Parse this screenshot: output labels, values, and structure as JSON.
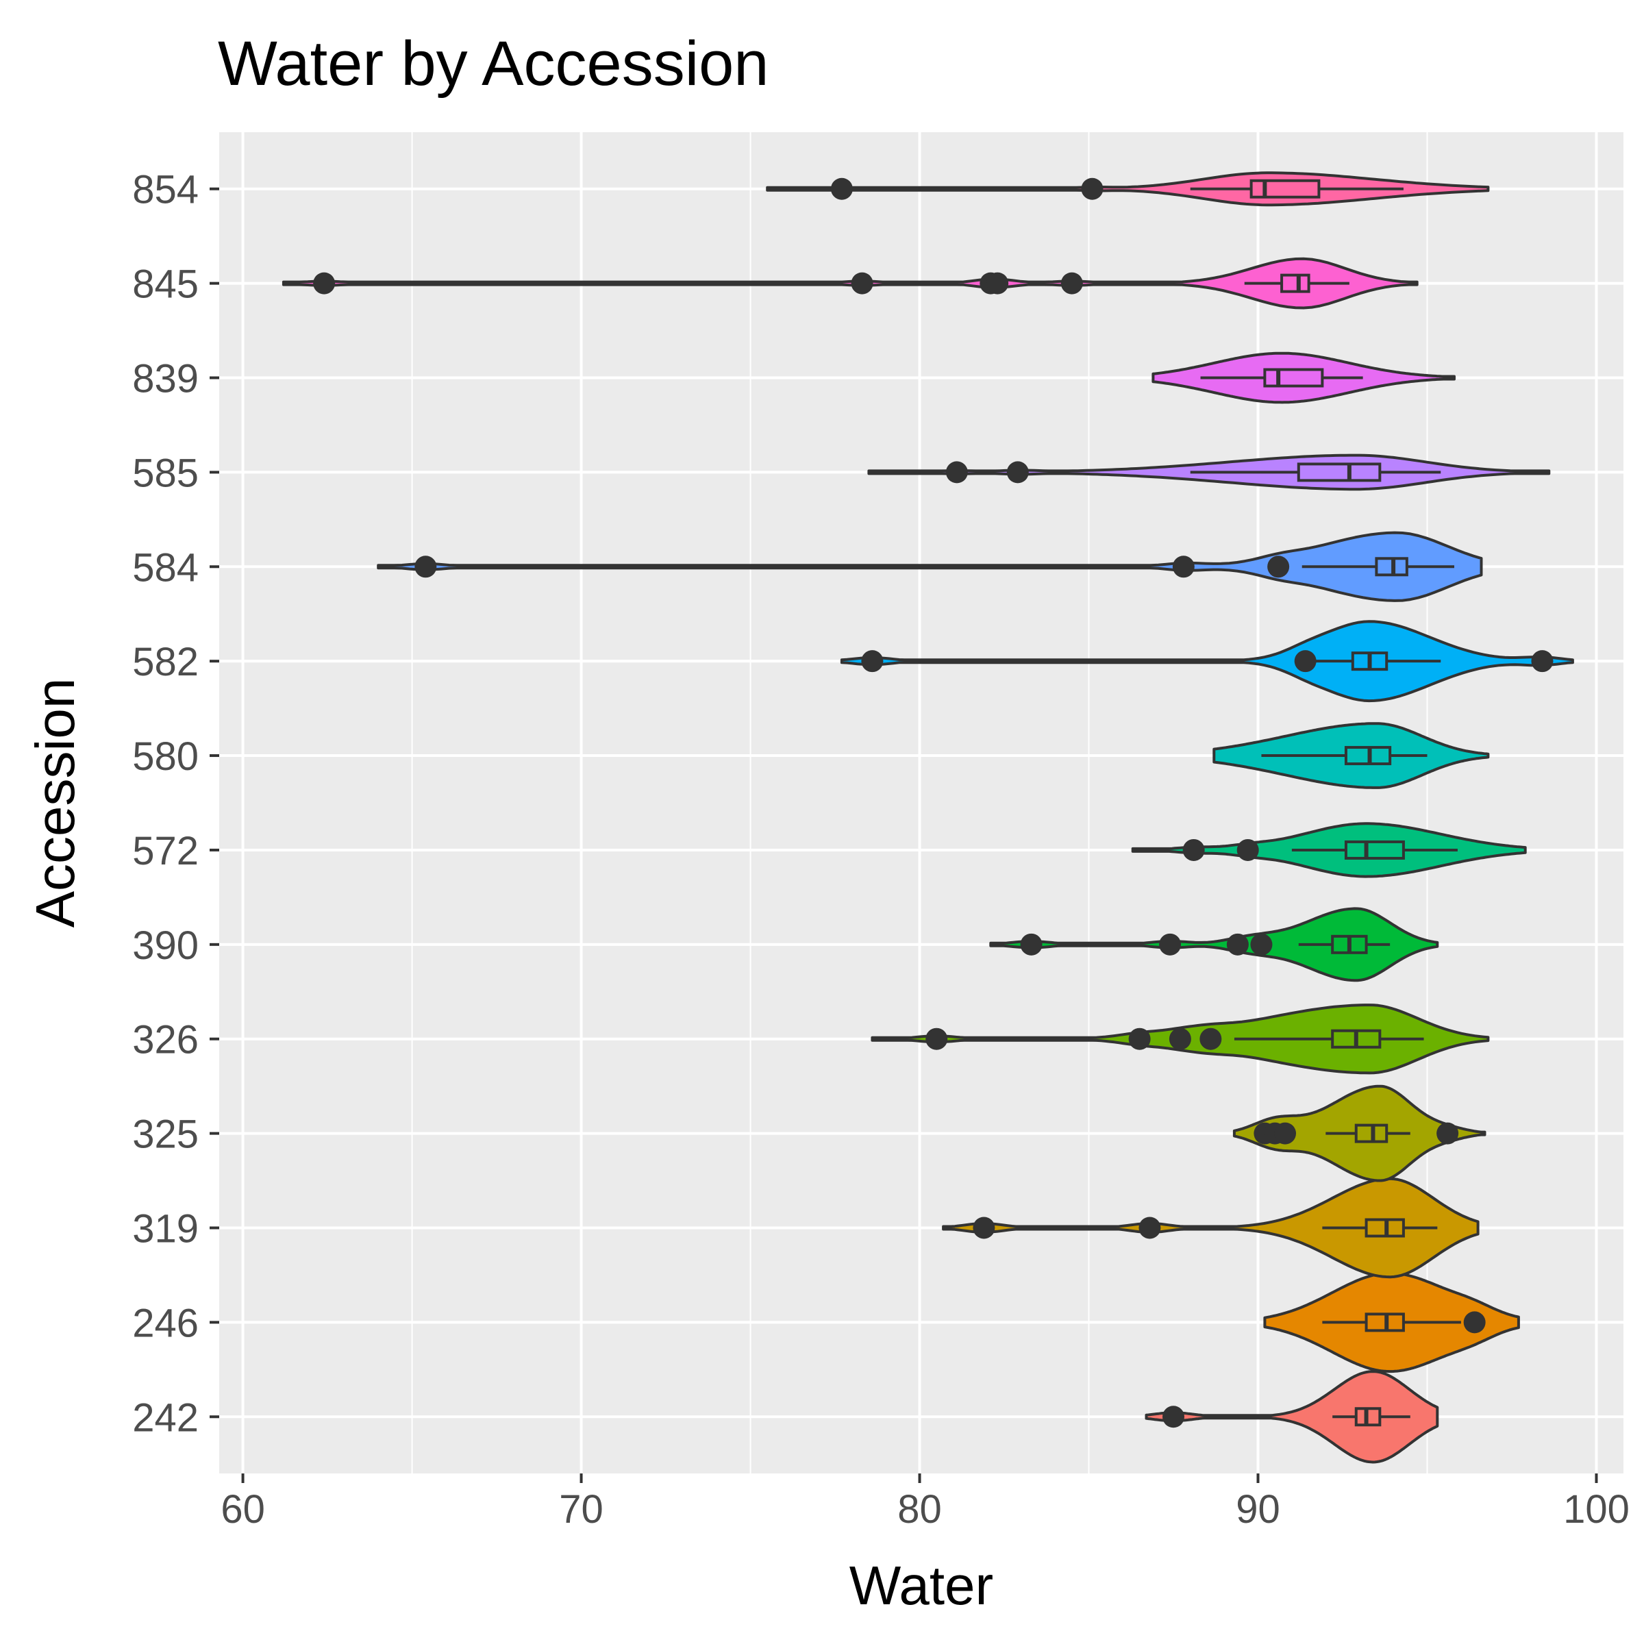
{
  "chart_data": {
    "type": "violin",
    "title": "Water by Accession",
    "xlabel": "Water",
    "ylabel": "Accession",
    "xlim": [
      59.3,
      100.8
    ],
    "x_ticks": [
      60,
      70,
      80,
      90,
      100
    ],
    "grid": true,
    "legend": "none",
    "categories": [
      "242",
      "246",
      "319",
      "325",
      "326",
      "390",
      "572",
      "580",
      "582",
      "584",
      "585",
      "839",
      "845",
      "854"
    ],
    "series": [
      {
        "category": "242",
        "color": "#F8766D",
        "min": 86.7,
        "max": 95.3,
        "mode": 93.4,
        "width": 0.48,
        "q1": 92.9,
        "median": 93.2,
        "q3": 93.6,
        "whisker_low": 92.2,
        "whisker_high": 94.5,
        "outliers": [
          87.5
        ]
      },
      {
        "category": "246",
        "color": "#E58700",
        "min": 90.2,
        "max": 97.7,
        "mode": 93.9,
        "width": 0.52,
        "q1": 93.2,
        "median": 93.8,
        "q3": 94.3,
        "whisker_low": 91.9,
        "whisker_high": 96.0,
        "outliers": [
          96.4
        ]
      },
      {
        "category": "319",
        "color": "#C99800",
        "min": 80.7,
        "max": 96.5,
        "mode": 93.9,
        "width": 0.52,
        "q1": 93.2,
        "median": 93.8,
        "q3": 94.3,
        "whisker_low": 91.9,
        "whisker_high": 95.3,
        "outliers": [
          81.9,
          86.8
        ]
      },
      {
        "category": "325",
        "color": "#A3A500",
        "min": 89.3,
        "max": 96.7,
        "mode": 93.6,
        "width": 0.5,
        "q1": 92.9,
        "median": 93.4,
        "q3": 93.8,
        "whisker_low": 92.0,
        "whisker_high": 94.5,
        "outliers": [
          90.2,
          90.5,
          90.8,
          95.6
        ]
      },
      {
        "category": "326",
        "color": "#6BB100",
        "min": 78.6,
        "max": 96.8,
        "mode": 93.3,
        "width": 0.36,
        "q1": 92.2,
        "median": 92.9,
        "q3": 93.6,
        "whisker_low": 89.3,
        "whisker_high": 94.9,
        "outliers": [
          80.5,
          86.5,
          87.7,
          88.6
        ]
      },
      {
        "category": "390",
        "color": "#00BA38",
        "min": 82.1,
        "max": 95.3,
        "mode": 92.9,
        "width": 0.38,
        "q1": 92.2,
        "median": 92.7,
        "q3": 93.2,
        "whisker_low": 91.2,
        "whisker_high": 93.9,
        "outliers": [
          83.3,
          87.4,
          89.4,
          90.1
        ]
      },
      {
        "category": "572",
        "color": "#00BF7D",
        "min": 86.3,
        "max": 97.9,
        "mode": 93.2,
        "width": 0.28,
        "q1": 92.6,
        "median": 93.2,
        "q3": 94.3,
        "whisker_low": 91.0,
        "whisker_high": 95.9,
        "outliers": [
          88.1,
          89.7
        ]
      },
      {
        "category": "580",
        "color": "#00C0B8",
        "min": 88.7,
        "max": 96.8,
        "mode": 93.5,
        "width": 0.34,
        "q1": 92.6,
        "median": 93.3,
        "q3": 93.9,
        "whisker_low": 90.1,
        "whisker_high": 95.0,
        "outliers": []
      },
      {
        "category": "582",
        "color": "#00B0F6",
        "min": 77.7,
        "max": 99.3,
        "mode": 93.3,
        "width": 0.42,
        "q1": 92.8,
        "median": 93.3,
        "q3": 93.8,
        "whisker_low": 91.7,
        "whisker_high": 95.4,
        "outliers": [
          78.6,
          91.4,
          98.4
        ]
      },
      {
        "category": "584",
        "color": "#619CFF",
        "min": 64.0,
        "max": 96.6,
        "mode": 94.1,
        "width": 0.36,
        "q1": 93.5,
        "median": 94.0,
        "q3": 94.4,
        "whisker_low": 91.3,
        "whisker_high": 95.8,
        "outliers": [
          65.4,
          87.8,
          90.6
        ]
      },
      {
        "category": "585",
        "color": "#B983FF",
        "min": 78.5,
        "max": 98.6,
        "mode": 92.9,
        "width": 0.18,
        "q1": 91.2,
        "median": 92.7,
        "q3": 93.6,
        "whisker_low": 88.0,
        "whisker_high": 95.4,
        "outliers": [
          81.1,
          82.9
        ]
      },
      {
        "category": "839",
        "color": "#E76BF3",
        "min": 86.9,
        "max": 95.8,
        "mode": 90.7,
        "width": 0.26,
        "q1": 90.2,
        "median": 90.6,
        "q3": 91.9,
        "whisker_low": 88.3,
        "whisker_high": 93.1,
        "outliers": []
      },
      {
        "category": "845",
        "color": "#FD61D1",
        "min": 61.2,
        "max": 94.7,
        "mode": 91.3,
        "width": 0.26,
        "q1": 90.7,
        "median": 91.2,
        "q3": 91.5,
        "whisker_low": 89.6,
        "whisker_high": 92.7,
        "outliers": [
          62.4,
          78.3,
          82.1,
          82.3,
          84.5
        ]
      },
      {
        "category": "854",
        "color": "#FF67A4",
        "min": 75.5,
        "max": 96.8,
        "mode": 90.3,
        "width": 0.17,
        "q1": 89.8,
        "median": 90.2,
        "q3": 91.8,
        "whisker_low": 88.0,
        "whisker_high": 94.3,
        "outliers": [
          77.7,
          85.1
        ]
      }
    ]
  }
}
